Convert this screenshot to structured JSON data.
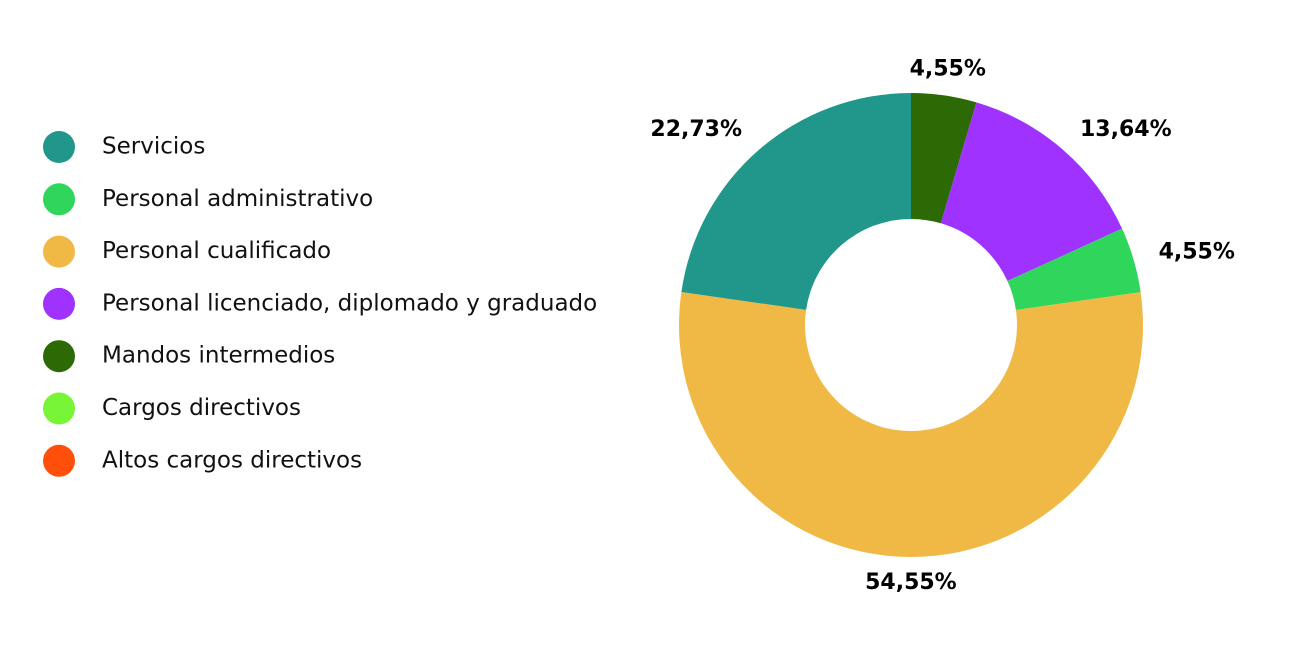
{
  "chart_data": {
    "type": "donut",
    "categories": [
      "Servicios",
      "Personal administrativo",
      "Personal cualificado",
      "Personal licenciado, diplomado y graduado",
      "Mandos intermedios",
      "Cargos directivos",
      "Altos cargos directivos"
    ],
    "values": [
      22.73,
      4.55,
      54.55,
      13.64,
      4.55,
      0,
      0
    ],
    "value_labels": [
      "22,73%",
      "4,55%",
      "54,55%",
      "13,64%",
      "4,55%",
      null,
      null
    ],
    "colors": [
      "#21968a",
      "#30d65c",
      "#f0b945",
      "#a032ff",
      "#2c6a06",
      "#78f536",
      "#ff4f0a"
    ],
    "legend": "left"
  }
}
